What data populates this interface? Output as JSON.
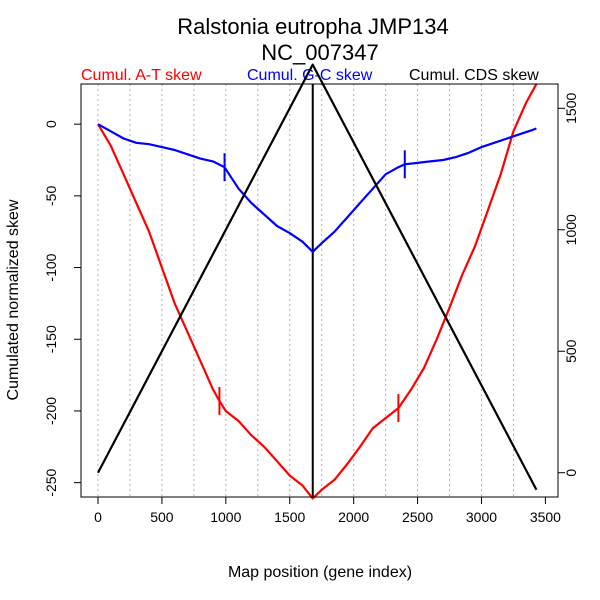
{
  "chart_data": {
    "type": "line",
    "title": "Ralstonia eutropha JMP134",
    "subtitle": "NC_007347",
    "xlabel": "Map position (gene index)",
    "ylabel": "Cumulated normalized skew",
    "xlim": [
      0,
      3450
    ],
    "ylim_left": [
      -260,
      28
    ],
    "ylim_right": [
      -100,
      1600
    ],
    "x_ticks": [
      0,
      500,
      1000,
      1500,
      2000,
      2500,
      3000,
      3500
    ],
    "y_ticks_left": [
      0,
      -50,
      -100,
      -150,
      -200,
      -250
    ],
    "y_ticks_right": [
      0,
      500,
      1000,
      1500
    ],
    "grid": "vertical dotted",
    "origin_line_x": 1680,
    "series": [
      {
        "name": "Cumul. A-T skew",
        "color": "#ff0000",
        "axis": "left",
        "x": [
          0,
          100,
          200,
          300,
          400,
          500,
          600,
          700,
          800,
          900,
          950,
          1000,
          1100,
          1200,
          1300,
          1400,
          1500,
          1600,
          1680,
          1750,
          1850,
          1950,
          2050,
          2150,
          2250,
          2350,
          2450,
          2550,
          2650,
          2750,
          2850,
          2950,
          3050,
          3150,
          3250,
          3350,
          3430
        ],
        "y": [
          0,
          -15,
          -35,
          -55,
          -75,
          -100,
          -125,
          -145,
          -165,
          -185,
          -193,
          -200,
          -207,
          -217,
          -225,
          -235,
          -245,
          -252,
          -261,
          -255,
          -248,
          -237,
          -225,
          -212,
          -205,
          -198,
          -185,
          -170,
          -150,
          -128,
          -105,
          -85,
          -60,
          -35,
          -5,
          15,
          28
        ]
      },
      {
        "name": "Cumul. G-C skew",
        "color": "#0000ff",
        "axis": "left",
        "x": [
          0,
          100,
          200,
          300,
          400,
          500,
          600,
          700,
          800,
          900,
          990,
          1100,
          1200,
          1300,
          1400,
          1500,
          1600,
          1680,
          1750,
          1850,
          1950,
          2050,
          2150,
          2250,
          2350,
          2400,
          2500,
          2600,
          2700,
          2800,
          2900,
          3000,
          3100,
          3200,
          3300,
          3400,
          3430
        ],
        "y": [
          0,
          -5,
          -10,
          -13,
          -14,
          -16,
          -18,
          -21,
          -24,
          -26,
          -30,
          -45,
          -55,
          -63,
          -71,
          -76,
          -82,
          -89,
          -83,
          -75,
          -65,
          -55,
          -45,
          -35,
          -30,
          -28,
          -27,
          -26,
          -25,
          -23,
          -20,
          -16,
          -13,
          -10,
          -7,
          -4,
          -3
        ]
      },
      {
        "name": "Cumul. CDS skew",
        "color": "#000000",
        "axis": "right",
        "x": [
          0,
          1680,
          3430
        ],
        "y": [
          0,
          1680,
          -70
        ]
      }
    ],
    "markers": [
      {
        "series": "Cumul. A-T skew",
        "x": 950,
        "y": -193
      },
      {
        "series": "Cumul. A-T skew",
        "x": 2350,
        "y": -198
      },
      {
        "series": "Cumul. G-C skew",
        "x": 990,
        "y": -30
      },
      {
        "series": "Cumul. G-C skew",
        "x": 2400,
        "y": -28
      }
    ]
  }
}
